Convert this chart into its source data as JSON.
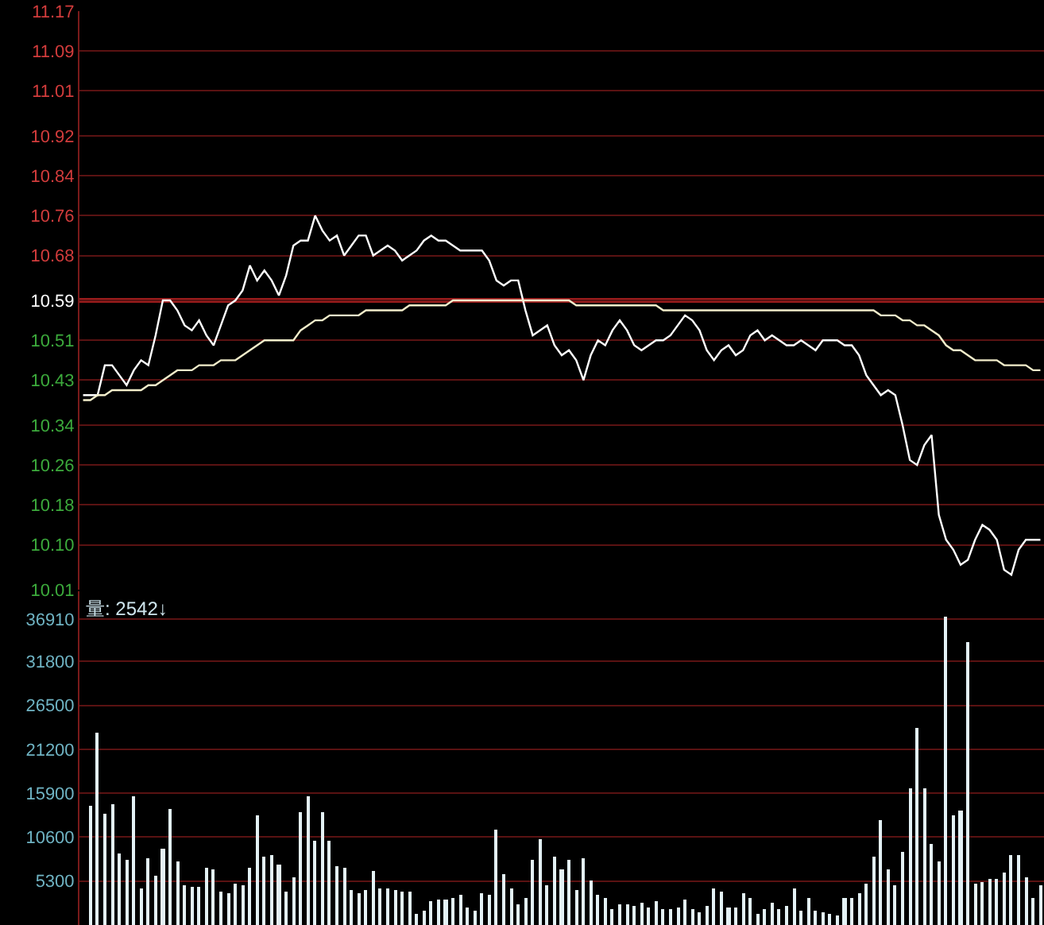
{
  "chart_data": [
    {
      "type": "line",
      "categories": [
        null,
        null,
        null,
        null,
        null,
        null,
        null,
        null,
        null,
        null,
        null,
        null,
        null,
        null,
        null,
        null,
        null,
        null,
        null,
        null,
        null,
        null,
        null,
        null,
        null,
        null,
        null,
        null,
        null,
        null,
        null,
        null,
        null,
        null,
        null,
        null,
        null,
        null,
        null,
        null,
        null,
        null,
        null,
        null,
        null,
        null,
        null,
        null,
        null,
        null,
        null,
        null,
        null,
        null,
        null,
        null,
        null,
        null,
        null,
        null,
        null,
        null,
        null,
        null,
        null,
        null,
        null,
        null,
        null,
        null,
        null,
        null,
        null,
        null,
        null,
        null,
        null,
        null,
        null,
        null,
        null,
        null,
        null,
        null,
        null,
        null,
        null,
        null,
        null,
        null,
        null,
        null,
        null,
        null,
        null,
        null,
        null,
        null,
        null,
        null,
        null,
        null,
        null,
        null,
        null,
        null,
        null,
        null,
        null,
        null,
        null,
        null,
        null,
        null,
        null,
        null,
        null,
        null,
        null,
        null,
        null,
        null,
        null,
        null,
        null,
        null,
        null,
        null,
        null,
        null,
        null,
        null,
        null
      ],
      "ylim": [
        10.01,
        11.17
      ],
      "yticks": [
        10.01,
        {
          "value": 10.1,
          "label": "10.10"
        },
        10.18,
        10.26,
        10.34,
        10.43,
        10.51,
        10.59,
        10.68,
        10.76,
        10.84,
        10.92,
        11.01,
        11.09,
        11.17
      ],
      "grid": "y",
      "tick_labels": "y",
      "ref_lines": [
        {
          "axis": "y",
          "value": 10.59,
          "color": "#9a1c1c"
        }
      ],
      "series": [
        {
          "color": "#ffffff",
          "values": [
            10.4,
            10.4,
            10.4,
            10.46,
            10.46,
            10.44,
            10.42,
            10.45,
            10.47,
            10.46,
            10.52,
            10.59,
            10.59,
            10.57,
            10.54,
            10.53,
            10.55,
            10.52,
            10.5,
            10.54,
            10.58,
            10.59,
            10.61,
            10.66,
            10.63,
            10.65,
            10.63,
            10.6,
            10.64,
            10.7,
            10.71,
            10.71,
            10.76,
            10.73,
            10.71,
            10.72,
            10.68,
            10.7,
            10.72,
            10.72,
            10.68,
            10.69,
            10.7,
            10.69,
            10.67,
            10.68,
            10.69,
            10.71,
            10.72,
            10.71,
            10.71,
            10.7,
            10.69,
            10.69,
            10.69,
            10.69,
            10.67,
            10.63,
            10.62,
            10.63,
            10.63,
            10.57,
            10.52,
            10.53,
            10.54,
            10.5,
            10.48,
            10.49,
            10.47,
            10.43,
            10.48,
            10.51,
            10.5,
            10.53,
            10.55,
            10.53,
            10.5,
            10.49,
            10.5,
            10.51,
            10.51,
            10.52,
            10.54,
            10.56,
            10.55,
            10.53,
            10.49,
            10.47,
            10.49,
            10.5,
            10.48,
            10.49,
            10.52,
            10.53,
            10.51,
            10.52,
            10.51,
            10.5,
            10.5,
            10.51,
            10.5,
            10.49,
            10.51,
            10.51,
            10.51,
            10.5,
            10.5,
            10.48,
            10.44,
            10.42,
            10.4,
            10.41,
            10.4,
            10.34,
            10.27,
            10.26,
            10.3,
            10.32,
            10.16,
            10.11,
            10.09,
            10.06,
            10.07,
            10.11,
            10.14,
            10.13,
            10.11,
            10.05,
            10.04,
            10.09,
            10.11,
            10.11,
            10.11
          ]
        },
        {
          "color": "#f3eecb",
          "values": [
            10.39,
            10.39,
            10.4,
            10.4,
            10.41,
            10.41,
            10.41,
            10.41,
            10.41,
            10.42,
            10.42,
            10.43,
            10.44,
            10.45,
            10.45,
            10.45,
            10.46,
            10.46,
            10.46,
            10.47,
            10.47,
            10.47,
            10.48,
            10.49,
            10.5,
            10.51,
            10.51,
            10.51,
            10.51,
            10.51,
            10.53,
            10.54,
            10.55,
            10.55,
            10.56,
            10.56,
            10.56,
            10.56,
            10.56,
            10.57,
            10.57,
            10.57,
            10.57,
            10.57,
            10.57,
            10.58,
            10.58,
            10.58,
            10.58,
            10.58,
            10.58,
            10.59,
            10.59,
            10.59,
            10.59,
            10.59,
            10.59,
            10.59,
            10.59,
            10.59,
            10.59,
            10.59,
            10.59,
            10.59,
            10.59,
            10.59,
            10.59,
            10.59,
            10.58,
            10.58,
            10.58,
            10.58,
            10.58,
            10.58,
            10.58,
            10.58,
            10.58,
            10.58,
            10.58,
            10.58,
            10.57,
            10.57,
            10.57,
            10.57,
            10.57,
            10.57,
            10.57,
            10.57,
            10.57,
            10.57,
            10.57,
            10.57,
            10.57,
            10.57,
            10.57,
            10.57,
            10.57,
            10.57,
            10.57,
            10.57,
            10.57,
            10.57,
            10.57,
            10.57,
            10.57,
            10.57,
            10.57,
            10.57,
            10.57,
            10.57,
            10.56,
            10.56,
            10.56,
            10.55,
            10.55,
            10.54,
            10.54,
            10.53,
            10.52,
            10.5,
            10.49,
            10.49,
            10.48,
            10.47,
            10.47,
            10.47,
            10.47,
            10.46,
            10.46,
            10.46,
            10.46,
            10.45,
            10.45
          ]
        }
      ]
    },
    {
      "type": "bar",
      "categories": [
        null,
        null,
        null,
        null,
        null,
        null,
        null,
        null,
        null,
        null,
        null,
        null,
        null,
        null,
        null,
        null,
        null,
        null,
        null,
        null,
        null,
        null,
        null,
        null,
        null,
        null,
        null,
        null,
        null,
        null,
        null,
        null,
        null,
        null,
        null,
        null,
        null,
        null,
        null,
        null,
        null,
        null,
        null,
        null,
        null,
        null,
        null,
        null,
        null,
        null,
        null,
        null,
        null,
        null,
        null,
        null,
        null,
        null,
        null,
        null,
        null,
        null,
        null,
        null,
        null,
        null,
        null,
        null,
        null,
        null,
        null,
        null,
        null,
        null,
        null,
        null,
        null,
        null,
        null,
        null,
        null,
        null,
        null,
        null,
        null,
        null,
        null,
        null,
        null,
        null,
        null,
        null,
        null,
        null,
        null,
        null,
        null,
        null,
        null,
        null,
        null,
        null,
        null,
        null,
        null,
        null,
        null,
        null,
        null,
        null,
        null,
        null,
        null,
        null,
        null,
        null,
        null,
        null,
        null,
        null,
        null,
        null,
        null,
        null,
        null,
        null,
        null,
        null,
        null,
        null,
        null,
        null,
        null
      ],
      "ylim": [
        0,
        40300
      ],
      "yticks": [
        5300,
        10600,
        15900,
        21200,
        26500,
        31800,
        36910
      ],
      "grid": "y",
      "tick_labels": "y",
      "annotations": [
        "量: 2542↓"
      ],
      "series": [
        {
          "color": "#e4f2f6",
          "values": [
            null,
            14400,
            23200,
            13500,
            14600,
            8700,
            7900,
            15600,
            4400,
            8100,
            6000,
            9200,
            14000,
            7700,
            4900,
            4600,
            4600,
            7000,
            6700,
            4100,
            3800,
            5100,
            4900,
            7000,
            13200,
            8300,
            8400,
            7300,
            4100,
            5800,
            13700,
            15600,
            10200,
            13700,
            10200,
            7200,
            6900,
            4300,
            3800,
            4300,
            6500,
            4400,
            4400,
            4300,
            4100,
            4100,
            1400,
            1700,
            2900,
            3000,
            3000,
            3200,
            3600,
            2100,
            1700,
            3800,
            3700,
            11600,
            6200,
            4400,
            2500,
            3300,
            7900,
            10400,
            4900,
            8300,
            6800,
            7900,
            4300,
            8100,
            5400,
            3700,
            3200,
            2000,
            2500,
            2500,
            2400,
            2700,
            2200,
            2900,
            1900,
            1900,
            2200,
            3000,
            1900,
            1600,
            2400,
            4400,
            4100,
            2200,
            2200,
            3900,
            3200,
            1300,
            1900,
            2700,
            1900,
            2400,
            4400,
            1800,
            3200,
            1800,
            1600,
            1300,
            1100,
            3200,
            3200,
            3800,
            5100,
            8300,
            12700,
            6700,
            4900,
            8900,
            16500,
            23800,
            16500,
            9800,
            7600,
            37300,
            13300,
            13800,
            34100,
            5100,
            5200,
            5600,
            5600,
            6400,
            8400,
            8400,
            5800,
            3200,
            4800
          ]
        }
      ]
    }
  ]
}
